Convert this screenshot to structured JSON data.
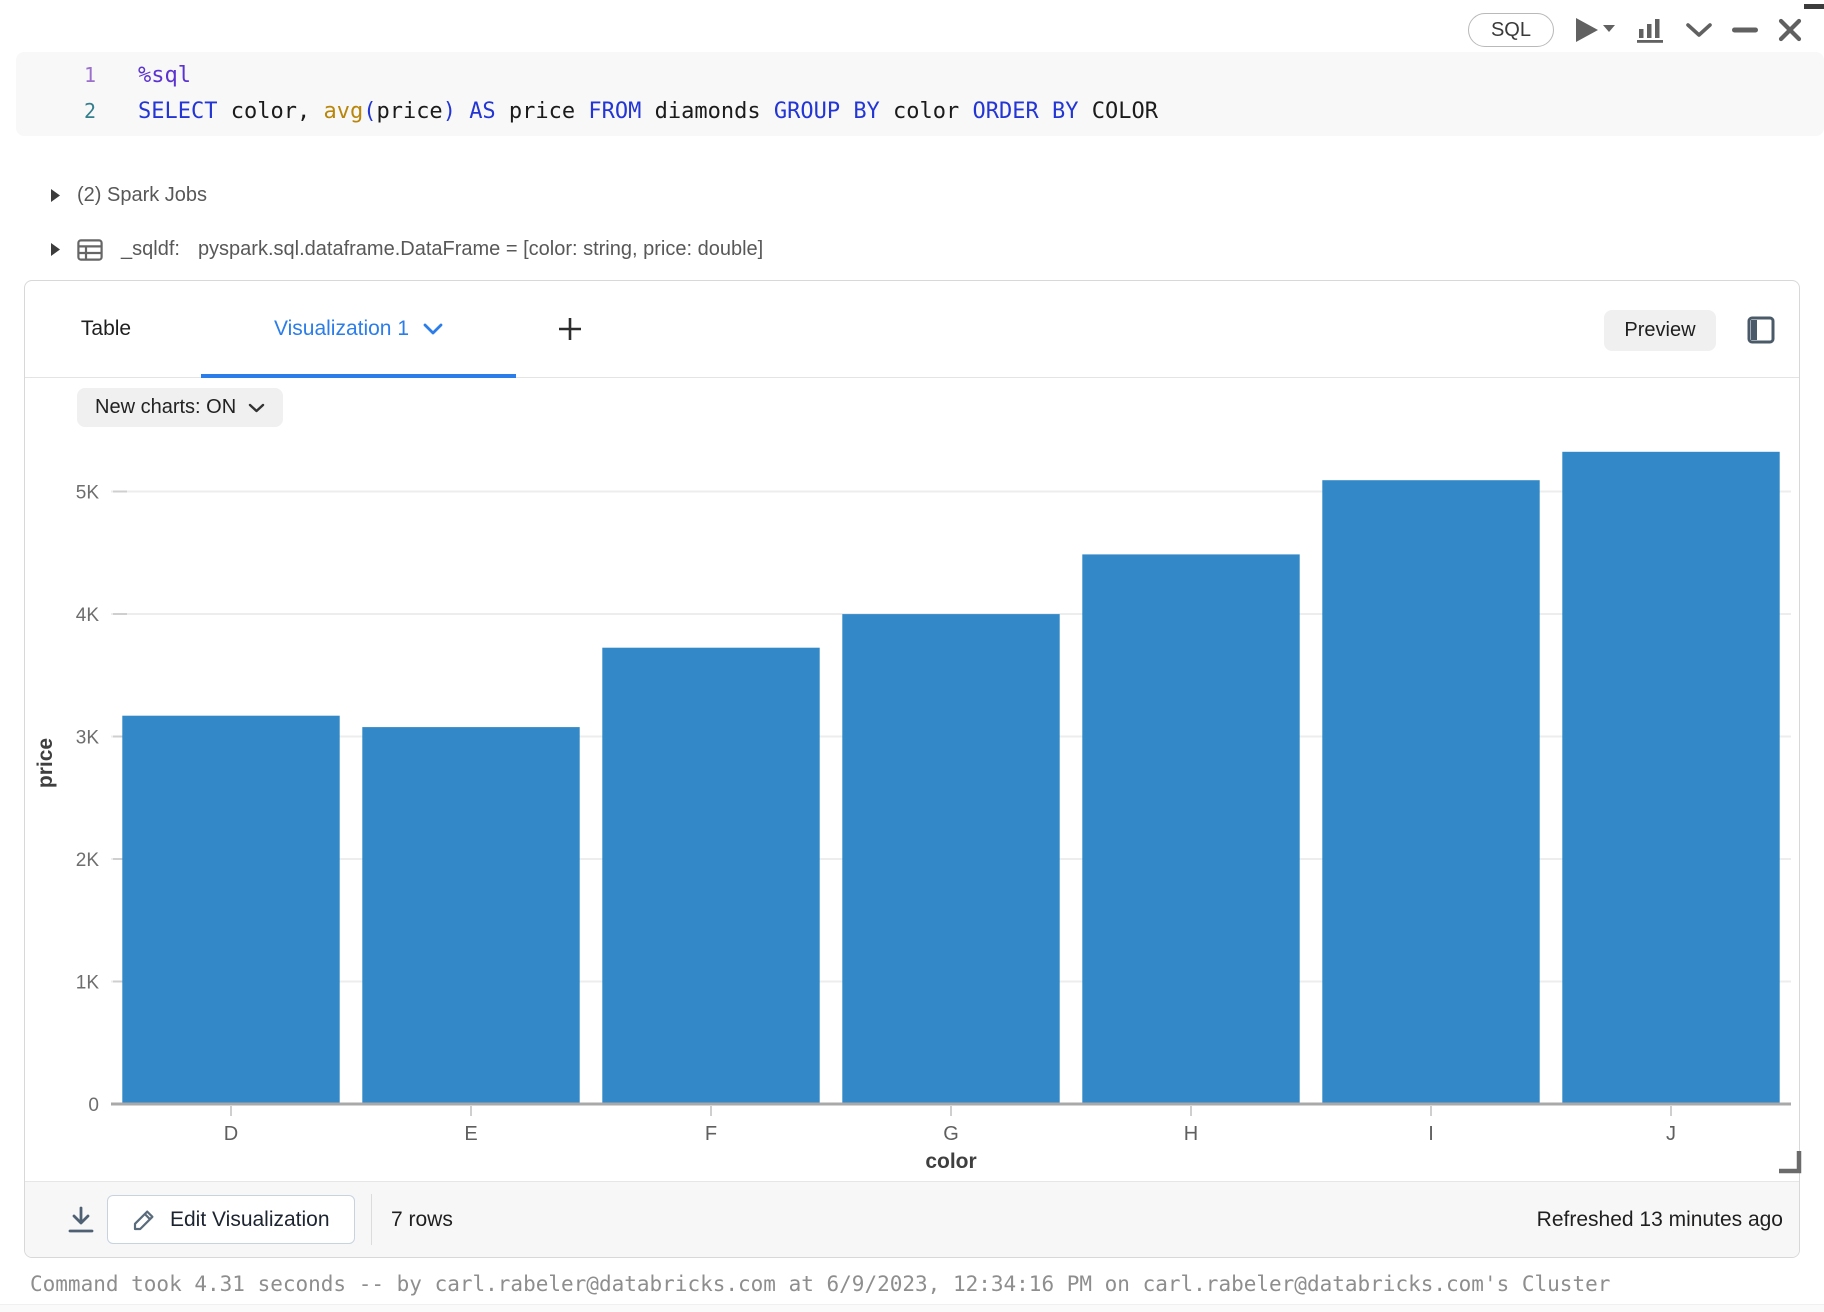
{
  "cell_toolbar": {
    "language_badge": "SQL"
  },
  "code_editor": {
    "lines": [
      {
        "number": "1",
        "tokens": [
          {
            "text": "%sql",
            "type": "magic"
          }
        ]
      },
      {
        "number": "2",
        "tokens": [
          {
            "text": "SELECT",
            "type": "keyword"
          },
          {
            "text": " color, ",
            "type": "plain"
          },
          {
            "text": "avg",
            "type": "function"
          },
          {
            "text": "(",
            "type": "keyword"
          },
          {
            "text": "price",
            "type": "plain"
          },
          {
            "text": ")",
            "type": "keyword"
          },
          {
            "text": " ",
            "type": "plain"
          },
          {
            "text": "AS",
            "type": "keyword"
          },
          {
            "text": " price ",
            "type": "plain"
          },
          {
            "text": "FROM",
            "type": "keyword"
          },
          {
            "text": " diamonds ",
            "type": "plain"
          },
          {
            "text": "GROUP BY",
            "type": "keyword"
          },
          {
            "text": " color ",
            "type": "plain"
          },
          {
            "text": "ORDER BY",
            "type": "keyword"
          },
          {
            "text": " COLOR",
            "type": "plain"
          }
        ]
      }
    ]
  },
  "spark_jobs": {
    "label": "(2) Spark Jobs"
  },
  "sqldf": {
    "name": "_sqldf:",
    "type_info": "pyspark.sql.dataframe.DataFrame = [color: string, price: double]"
  },
  "results": {
    "tabs": {
      "table": "Table",
      "visualization": "Visualization 1",
      "add": "+"
    },
    "preview_button": "Preview",
    "new_charts_toggle": "New charts: ON",
    "footer": {
      "edit_button": "Edit Visualization",
      "row_count": "7 rows",
      "refreshed": "Refreshed 13 minutes ago"
    }
  },
  "status_bar": {
    "text": "Command took 4.31 seconds -- by carl.rabeler@databricks.com at 6/9/2023, 12:34:16 PM on carl.rabeler@databricks.com's Cluster"
  },
  "colors": {
    "accent_blue": "#2b7de9",
    "bar_blue": "#3388c8",
    "axis_line": "#a9a9a9",
    "gridline": "#ededed"
  },
  "chart_data": {
    "type": "bar",
    "categories": [
      "D",
      "E",
      "F",
      "G",
      "H",
      "I",
      "J"
    ],
    "values": [
      3169.95,
      3076.75,
      3724.89,
      3999.14,
      4486.67,
      5091.87,
      5323.82
    ],
    "title": "",
    "xlabel": "color",
    "ylabel": "price",
    "ylim": [
      0,
      5340
    ],
    "yticks": [
      {
        "v": 0,
        "label": "0"
      },
      {
        "v": 1000,
        "label": "1K"
      },
      {
        "v": 2000,
        "label": "2K"
      },
      {
        "v": 3000,
        "label": "3K"
      },
      {
        "v": 4000,
        "label": "4K"
      },
      {
        "v": 5000,
        "label": "5K"
      }
    ],
    "grid": true,
    "legend": "none",
    "bar_color": "#3388c8"
  }
}
